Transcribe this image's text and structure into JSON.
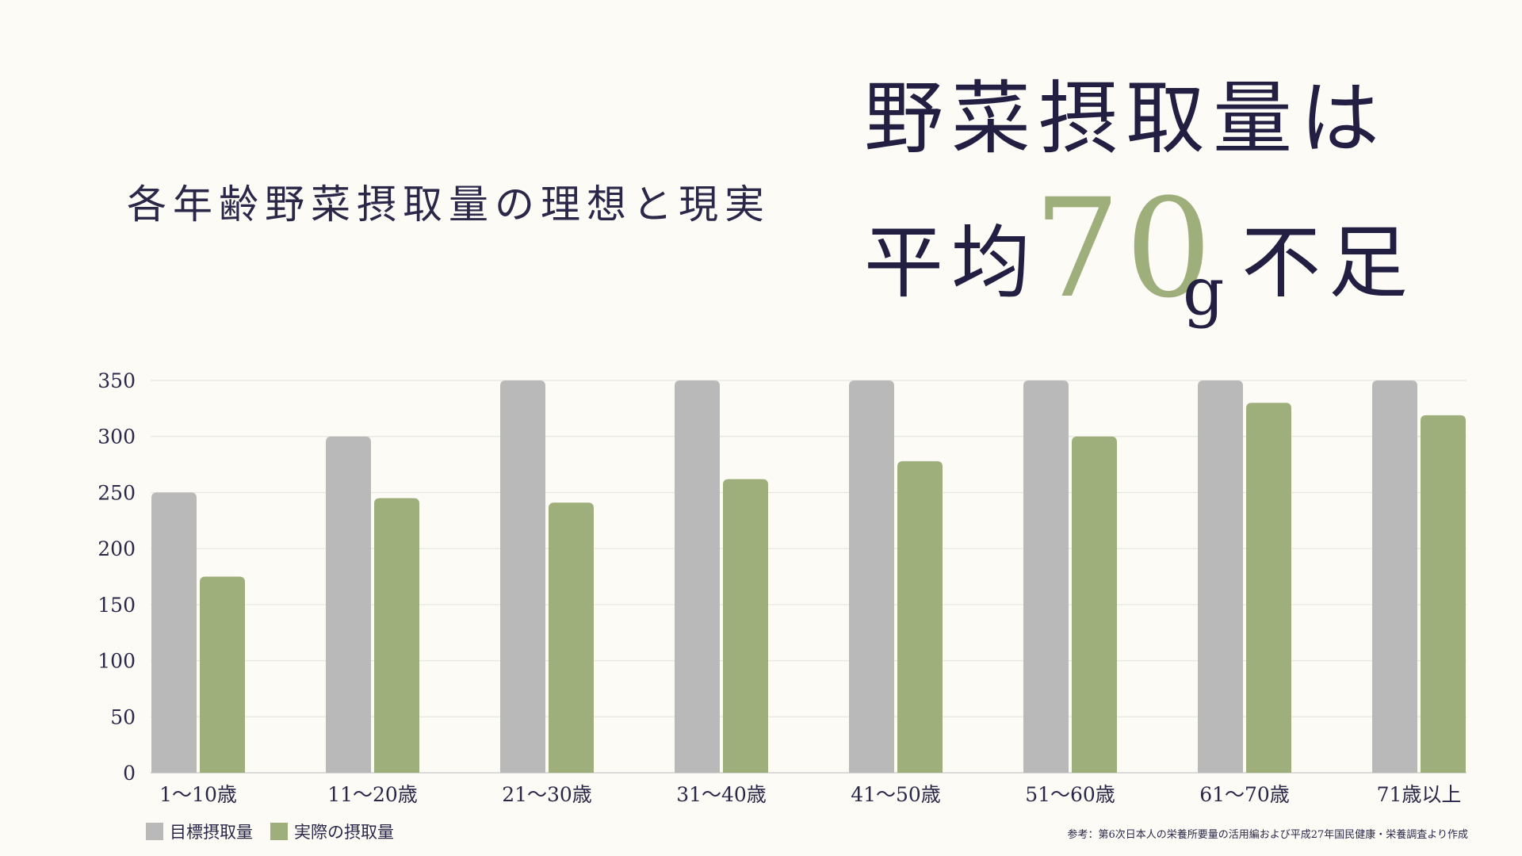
{
  "subtitle": "各年齢野菜摂取量の理想と現実",
  "headline": {
    "line1": "野菜摂取量は",
    "line2_prefix": "平均",
    "highlight_number": "70",
    "unit": "g",
    "line2_suffix": "不足"
  },
  "colors": {
    "target": "#b9b9ba",
    "actual": "#9eaf7b",
    "highlight": "#9eaf7b",
    "text": "#2a2748"
  },
  "chart_data": {
    "type": "bar",
    "categories": [
      "1～10歳",
      "11～20歳",
      "21～30歳",
      "31～40歳",
      "41～50歳",
      "51～60歳",
      "61～70歳",
      "71歳以上"
    ],
    "series": [
      {
        "name": "目標摂取量",
        "values": [
          250,
          300,
          350,
          350,
          350,
          350,
          350,
          350
        ]
      },
      {
        "name": "実際の摂取量",
        "values": [
          175,
          245,
          241,
          262,
          278,
          300,
          330,
          319
        ]
      }
    ],
    "yticks": [
      0,
      50,
      100,
      150,
      200,
      250,
      300,
      350
    ],
    "ylim": [
      0,
      350
    ],
    "grid": true,
    "legend": "bottom-left"
  },
  "source_note": "参考：第6次日本人の栄養所要量の活用編および平成27年国民健康・栄養調査より作成"
}
